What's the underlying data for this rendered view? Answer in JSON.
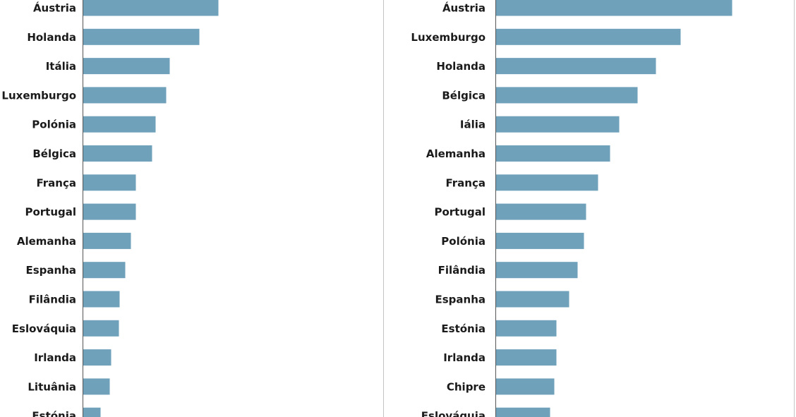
{
  "colors": {
    "bar": "#6fa1bb",
    "axis": "#555555",
    "text": "#1a1a1a",
    "frame": "#c4c4c4"
  },
  "chart_data": [
    {
      "type": "bar",
      "orientation": "horizontal",
      "title": "",
      "xlabel": "",
      "ylabel": "",
      "categories": [
        "Áustria",
        "Holanda",
        "Itália",
        "Luxemburgo",
        "Polónia",
        "Bélgica",
        "França",
        "Portugal",
        "Alemanha",
        "Espanha",
        "Filândia",
        "Eslováquia",
        "Irlanda",
        "Lituânia",
        "Estónia"
      ],
      "values": [
        192,
        165,
        123,
        118,
        103,
        98,
        75,
        75,
        68,
        60,
        52,
        51,
        40,
        38,
        25
      ],
      "xlim": [
        0,
        200
      ],
      "grid": false,
      "legend": "none"
    },
    {
      "type": "bar",
      "orientation": "horizontal",
      "title": "",
      "xlabel": "",
      "ylabel": "",
      "categories": [
        "Áustria",
        "Luxemburgo",
        "Holanda",
        "Bélgica",
        "Iália",
        "Alemanha",
        "França",
        "Portugal",
        "Polónia",
        "Filândia",
        "Espanha",
        "Estónia",
        "Irlanda",
        "Chipre",
        "Eslováquia"
      ],
      "values": [
        335,
        262,
        227,
        201,
        175,
        162,
        145,
        128,
        125,
        116,
        104,
        86,
        86,
        83,
        77
      ],
      "xlim": [
        0,
        350
      ],
      "grid": false,
      "legend": "none"
    }
  ]
}
